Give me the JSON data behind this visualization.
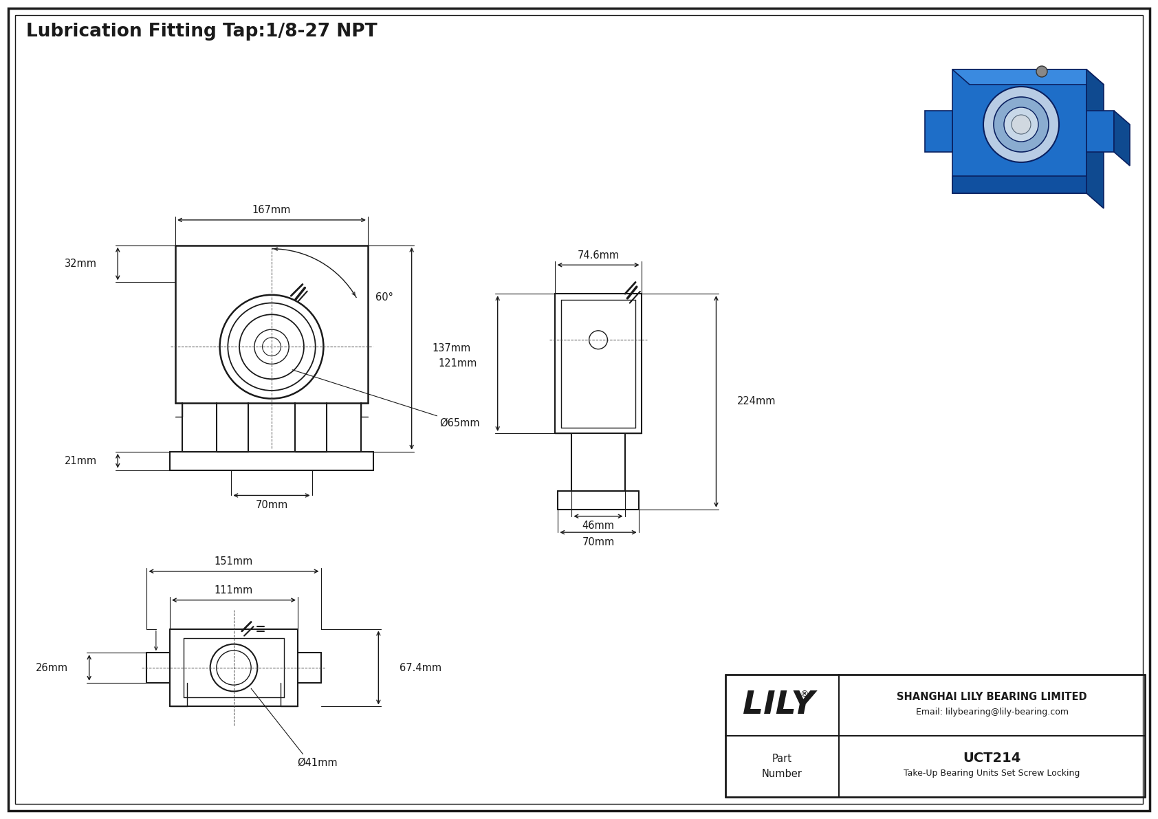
{
  "title": "Lubrication Fitting Tap:1/8-27 NPT",
  "background_color": "#ffffff",
  "line_color": "#1a1a1a",
  "fig_width": 16.84,
  "fig_height": 11.91,
  "dims": {
    "front_167": "167mm",
    "front_32": "32mm",
    "front_21": "21mm",
    "front_137": "137mm",
    "front_70": "70mm",
    "front_65": "Ø65mm",
    "front_60": "60°",
    "side_746": "74.6mm",
    "side_121": "121mm",
    "side_224": "224mm",
    "side_46": "46mm",
    "side_70": "70mm",
    "bot_151": "151mm",
    "bot_111": "111mm",
    "bot_674": "67.4mm",
    "bot_26": "26mm",
    "bot_41": "Ø41mm"
  },
  "title_box": {
    "part_number": "UCT214",
    "description": "Take-Up Bearing Units Set Screw Locking",
    "company": "SHANGHAI LILY BEARING LIMITED",
    "email": "Email: lilybearing@lily-bearing.com",
    "logo": "LILY"
  }
}
